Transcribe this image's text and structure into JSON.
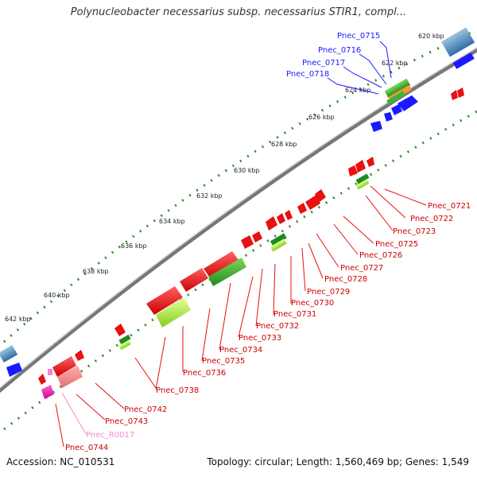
{
  "title": "Polynucleobacter necessarius subsp. necessarius STIR1, compl...",
  "footer": {
    "accession": "Accession: NC_010531",
    "stats": "Topology: circular; Length: 1,560,469 bp; Genes: 1,549"
  },
  "scale_labels": [
    "620 kbp",
    "622 kbp",
    "624 kbp",
    "626 kbp",
    "628 kbp",
    "630 kbp",
    "632 kbp",
    "634 kbp",
    "636 kbp",
    "638 kbp",
    "640 kbp",
    "642 kbp"
  ],
  "colors": {
    "forward_cds": "#1a1aff",
    "reverse_cds": "#e81010",
    "rna": "#f08cc8",
    "tick": "#2e8b2e",
    "backbone": "#777777"
  },
  "labels_top": [
    "Pnec_0715",
    "Pnec_0716",
    "Pnec_0717",
    "Pnec_0718"
  ],
  "labels_bottom": [
    "Pnec_0721",
    "Pnec_0722",
    "Pnec_0723",
    "Pnec_0725",
    "Pnec_0726",
    "Pnec_0727",
    "Pnec_0728",
    "Pnec_0729",
    "Pnec_0730",
    "Pnec_0731",
    "Pnec_0732",
    "Pnec_0733",
    "Pnec_0734",
    "Pnec_0735",
    "Pnec_0736",
    "Pnec_0738",
    "Pnec_0742",
    "Pnec_0743",
    "Pnec_R0017",
    "Pnec_0744"
  ]
}
